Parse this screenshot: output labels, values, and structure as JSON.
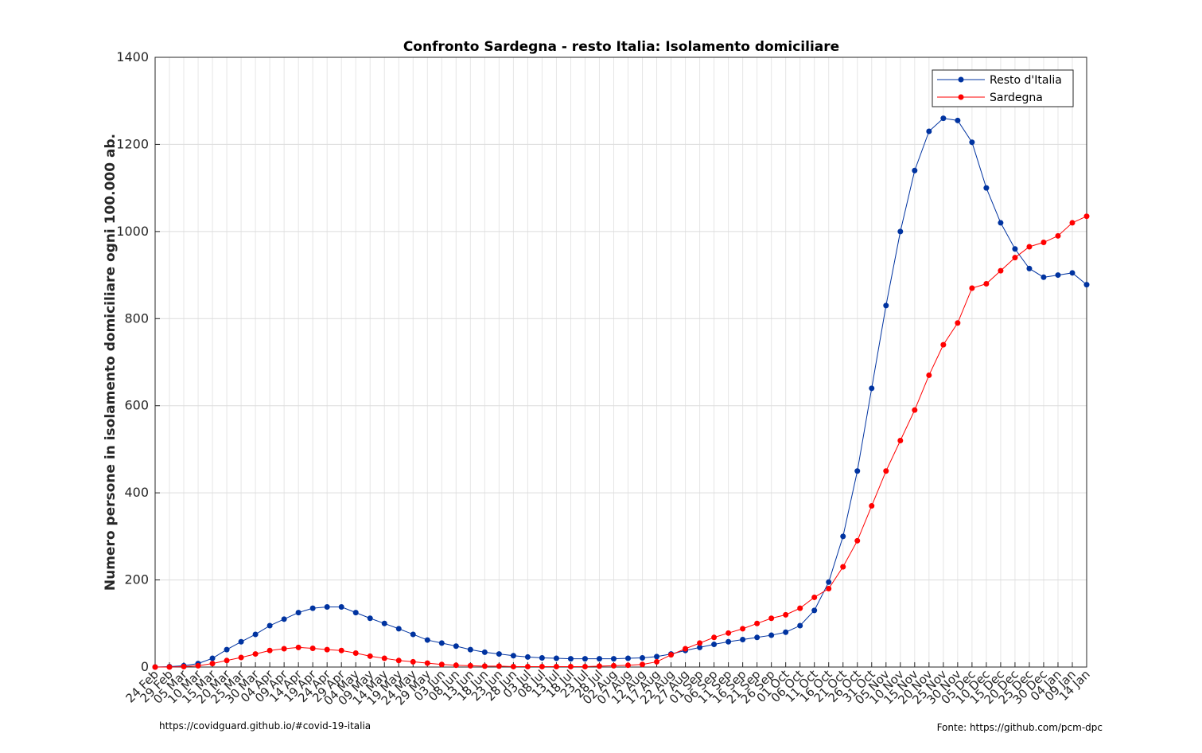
{
  "chart_data": {
    "type": "line",
    "title": "Confronto Sardegna - resto Italia: Isolamento domiciliare",
    "ylabel": "Numero persone in isolamento domiciliare ogni 100.000 ab.",
    "footer_left": "https://covidguard.github.io/#covid-19-italia",
    "footer_right": "Fonte: https://github.com/pcm-dpc",
    "categories": [
      "24 Feb",
      "29 Feb",
      "05 Mar",
      "10 Mar",
      "15 Mar",
      "20 Mar",
      "25 Mar",
      "30 Mar",
      "04 Apr",
      "09 Apr",
      "14 Apr",
      "19 Apr",
      "24 Apr",
      "29 Apr",
      "04 May",
      "09 May",
      "14 May",
      "19 May",
      "24 May",
      "29 May",
      "03 Jun",
      "08 Jun",
      "13 Jun",
      "18 Jun",
      "23 Jun",
      "28 Jun",
      "03 Jul",
      "08 Jul",
      "13 Jul",
      "18 Jul",
      "23 Jul",
      "28 Jul",
      "02 Aug",
      "07 Aug",
      "12 Aug",
      "17 Aug",
      "22 Aug",
      "27 Aug",
      "01 Sep",
      "06 Sep",
      "11 Sep",
      "16 Sep",
      "21 Sep",
      "26 Sep",
      "01 Oct",
      "06 Oct",
      "11 Oct",
      "16 Oct",
      "21 Oct",
      "26 Oct",
      "31 Oct",
      "05 Nov",
      "10 Nov",
      "15 Nov",
      "20 Nov",
      "25 Nov",
      "30 Nov",
      "05 Dec",
      "10 Dec",
      "15 Dec",
      "20 Dec",
      "25 Dec",
      "30 Dec",
      "04 Jan",
      "09 Jan",
      "14 Jan"
    ],
    "series": [
      {
        "name": "Resto d'Italia",
        "color": "#0033a0",
        "values": [
          0,
          1,
          3,
          8,
          20,
          40,
          58,
          75,
          95,
          110,
          125,
          135,
          138,
          138,
          125,
          112,
          100,
          88,
          75,
          62,
          55,
          48,
          40,
          34,
          30,
          26,
          23,
          21,
          20,
          19,
          19,
          19,
          19,
          20,
          21,
          24,
          30,
          38,
          45,
          52,
          58,
          63,
          68,
          73,
          80,
          95,
          130,
          195,
          300,
          450,
          640,
          830,
          1000,
          1140,
          1230,
          1260,
          1255,
          1205,
          1100,
          1020,
          960,
          915,
          895,
          900,
          905,
          878
        ]
      },
      {
        "name": "Sardegna",
        "color": "#ff0000",
        "values": [
          0,
          0,
          1,
          3,
          8,
          15,
          22,
          30,
          38,
          42,
          45,
          43,
          40,
          38,
          32,
          25,
          20,
          15,
          12,
          9,
          6,
          4,
          3,
          2,
          2,
          1,
          1,
          1,
          1,
          1,
          1,
          2,
          3,
          4,
          6,
          12,
          28,
          42,
          55,
          68,
          78,
          88,
          100,
          112,
          120,
          135,
          160,
          180,
          230,
          290,
          370,
          450,
          520,
          590,
          670,
          740,
          790,
          870,
          880,
          910,
          940,
          965,
          975,
          990,
          1020,
          1035
        ]
      }
    ],
    "ylim": [
      0,
      1400
    ],
    "yticks": [
      0,
      200,
      400,
      600,
      800,
      1000,
      1200,
      1400
    ],
    "grid": true,
    "legend": "top-right"
  }
}
